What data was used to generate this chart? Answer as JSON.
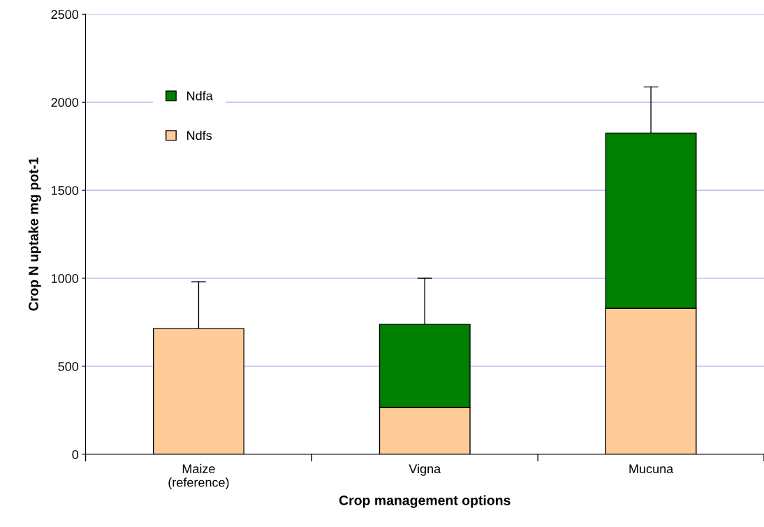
{
  "chart_data": {
    "type": "bar",
    "stacked": true,
    "xlabel": "Crop management options",
    "ylabel": "Crop N uptake mg pot-1",
    "categories": [
      "Maize\n(reference)",
      "Vigna",
      "Mucuna"
    ],
    "series": [
      {
        "name": "Ndfs",
        "color": "#ffcc99",
        "values": [
          714,
          266,
          829
        ],
        "errors": [
          [
            714,
            980
          ],
          null,
          null
        ]
      },
      {
        "name": "Ndfa",
        "color": "#008000",
        "values": [
          null,
          472,
          996
        ],
        "errors": [
          null,
          [
            738,
            1000
          ],
          [
            1825,
            2087
          ]
        ]
      }
    ],
    "ylim": [
      0,
      2500
    ],
    "yticks": [
      0,
      500,
      1000,
      1500,
      2000,
      2500
    ],
    "grid": "y",
    "legend": "top left"
  }
}
